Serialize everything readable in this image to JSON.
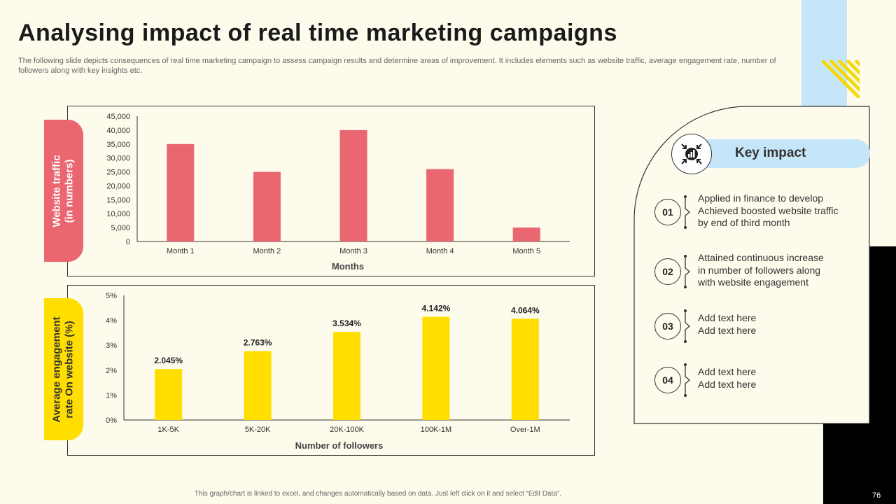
{
  "slide": {
    "title": "Analysing impact of real time marketing campaigns",
    "subtitle": "The following slide depicts consequences of real time marketing campaign to assess campaign results and determine areas of improvement. It includes elements such as website traffic, average engagement rate, number of followers along with key insights etc.",
    "footer_note": "This graph/chart is linked to excel, and changes automatically based on data. Just left click on it and select “Edit Data”.",
    "page_number": "76"
  },
  "colors": {
    "background": "#fdfbec",
    "traffic_bar": "#ea6670",
    "engagement_bar": "#ffde00",
    "accent_blue": "#c5e6f8",
    "accent_yellow": "#f5d90a"
  },
  "chart_data": [
    {
      "type": "bar",
      "side_label": "Website traffic\n(in numbers)",
      "xlabel": "Months",
      "categories": [
        "Month 1",
        "Month 2",
        "Month 3",
        "Month 4",
        "Month 5"
      ],
      "values": [
        35000,
        25000,
        40000,
        26000,
        5000
      ],
      "ylim": [
        0,
        45000
      ],
      "yticks": [
        "0",
        "5,000",
        "10,000",
        "15,000",
        "20,000",
        "25,000",
        "30,000",
        "35,000",
        "40,000",
        "45,000"
      ],
      "data_labels": false,
      "grid": false
    },
    {
      "type": "bar",
      "side_label": "Average engagement\nrate On website (%)",
      "xlabel": "Number of followers",
      "categories": [
        "1K-5K",
        "5K-20K",
        "20K-100K",
        "100K-1M",
        "Over-1M"
      ],
      "values": [
        2.045,
        2.763,
        3.534,
        4.142,
        4.064
      ],
      "value_labels": [
        "2.045%",
        "2.763%",
        "3.534%",
        "4.142%",
        "4.064%"
      ],
      "ylim": [
        0,
        5
      ],
      "yticks": [
        "0%",
        "1%",
        "2%",
        "3%",
        "4%",
        "5%"
      ],
      "data_labels": true,
      "grid": false
    }
  ],
  "key_impact": {
    "heading": "Key impact",
    "icon": "analytics-target-icon",
    "items": [
      {
        "number": "01",
        "text": "Applied in finance to develop\nAchieved boosted website traffic\nby end of third month"
      },
      {
        "number": "02",
        "text": "Attained continuous increase\nin number of followers along\nwith website engagement"
      },
      {
        "number": "03",
        "text": "Add text here\nAdd text here"
      },
      {
        "number": "04",
        "text": "Add text here\nAdd text here"
      }
    ]
  }
}
